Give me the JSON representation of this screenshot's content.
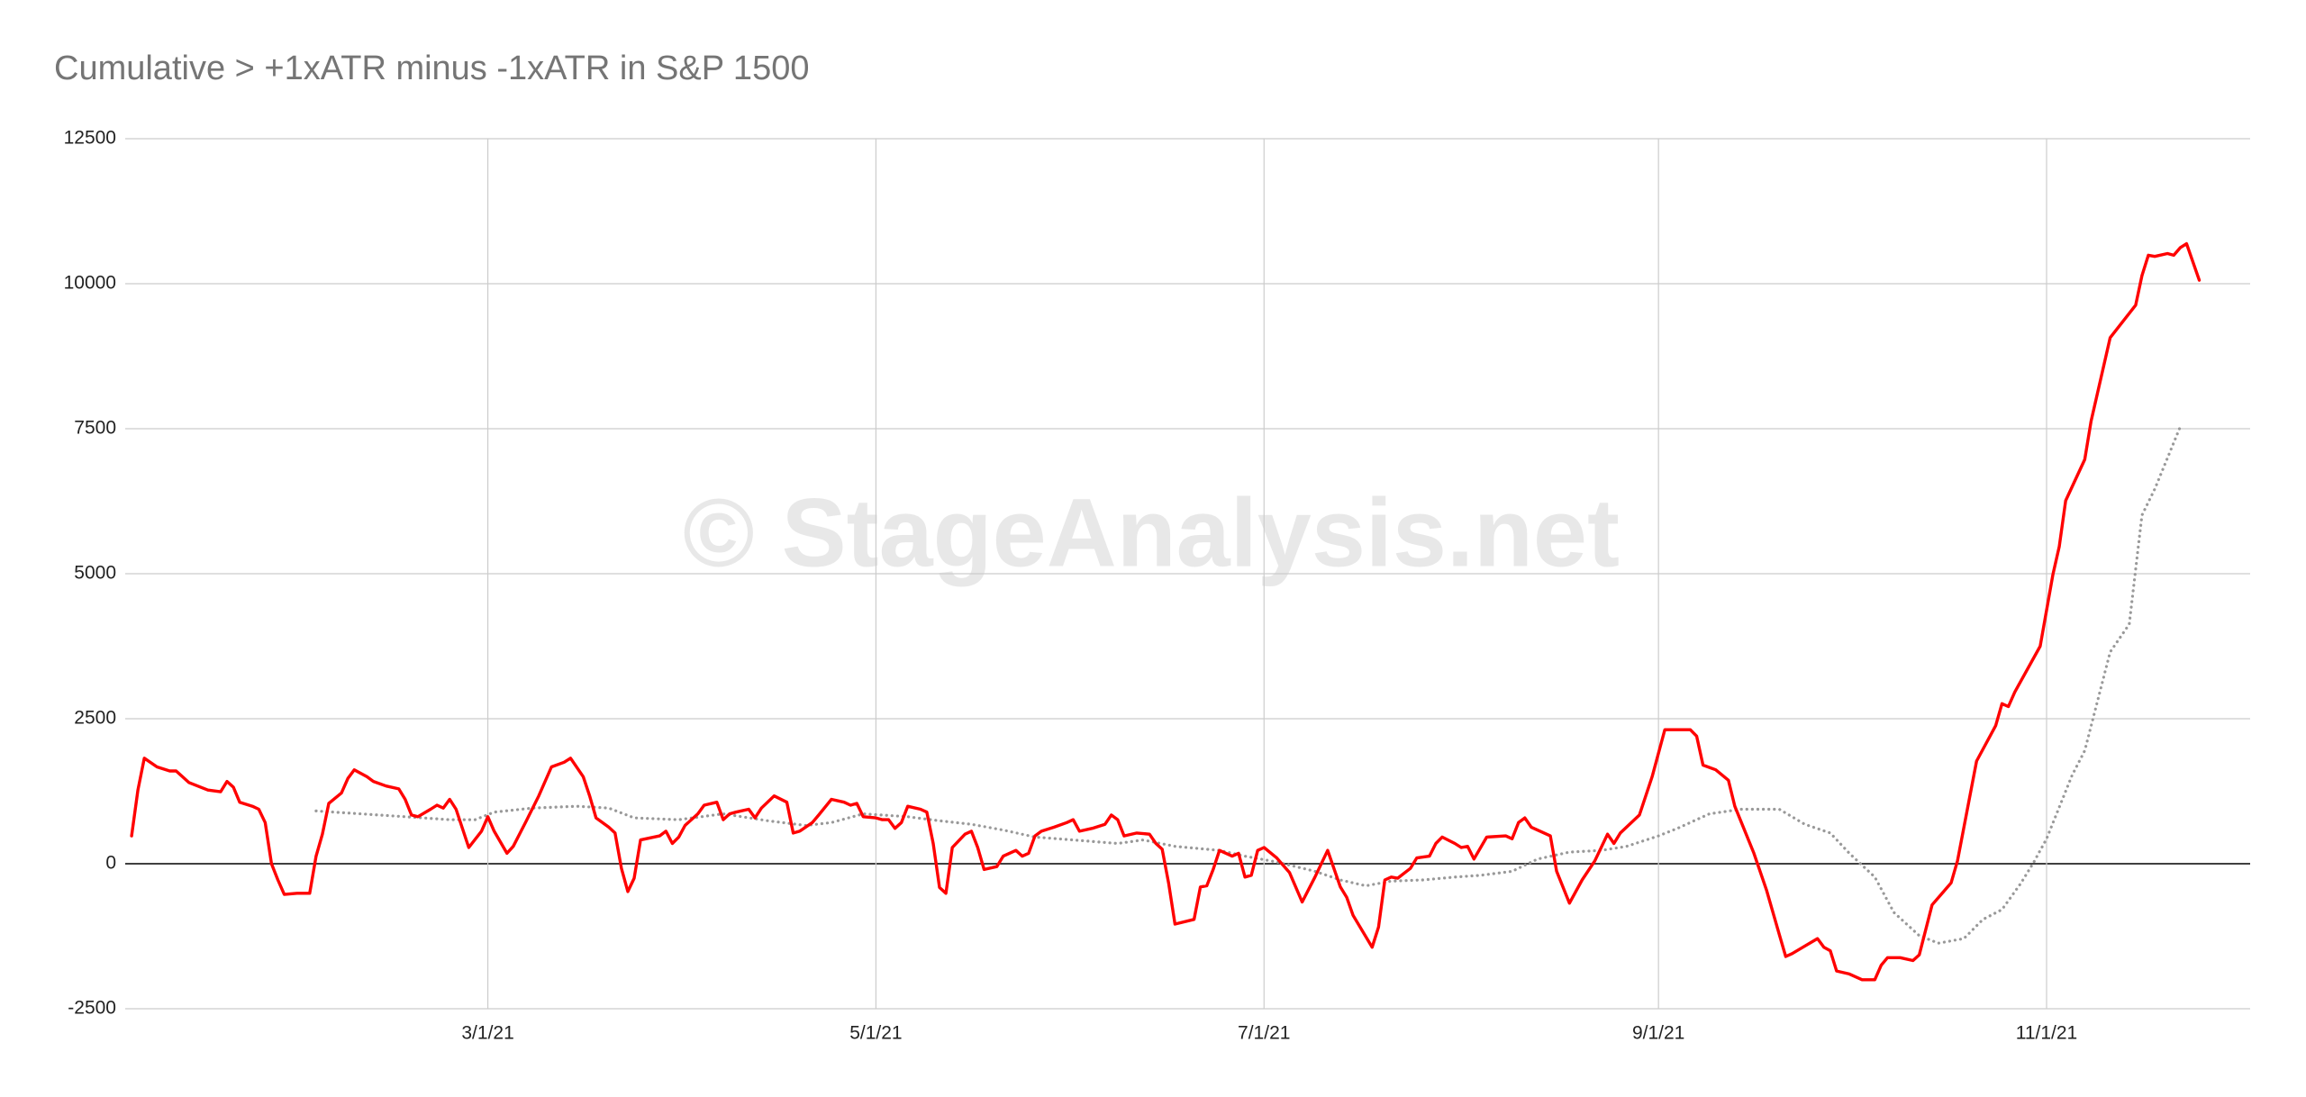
{
  "chart_data": {
    "type": "line",
    "title": "Cumulative > +1xATR minus -1xATR in S&P 1500",
    "watermark": "© StageAnalysis.net",
    "xlim": [
      "1/3/21",
      "12/3/21"
    ],
    "xticks": [
      "3/1/21",
      "5/1/21",
      "7/1/21",
      "9/1/21",
      "11/1/21"
    ],
    "ylim": [
      -2500,
      12500
    ],
    "yticks": [
      -2500,
      0,
      2500,
      5000,
      7500,
      10000,
      12500
    ],
    "grid": true,
    "series": [
      {
        "color": "#ff0000",
        "style": "solid",
        "x": [
          "1/4/21",
          "1/5/21",
          "1/6/21",
          "1/8/21",
          "1/10/21",
          "1/11/21",
          "1/12/21",
          "1/13/21",
          "1/16/21",
          "1/18/21",
          "1/19/21",
          "1/20/21",
          "1/21/21",
          "1/23/21",
          "1/24/21",
          "1/25/21",
          "1/26/21",
          "1/27/21",
          "1/28/21",
          "1/30/21",
          "2/1/21",
          "2/2/21",
          "2/3/21",
          "2/4/21",
          "2/6/21",
          "2/7/21",
          "2/8/21",
          "2/10/21",
          "2/11/21",
          "2/13/21",
          "2/15/21",
          "2/16/21",
          "2/17/21",
          "2/18/21",
          "2/20/21",
          "2/21/21",
          "2/22/21",
          "2/23/21",
          "2/24/21",
          "2/26/21",
          "2/28/21",
          "3/1/21",
          "3/2/21",
          "3/4/21",
          "3/5/21",
          "3/7/21",
          "3/9/21",
          "3/11/21",
          "3/13/21",
          "3/14/21",
          "3/16/21",
          "3/17/21",
          "3/18/21",
          "3/20/21",
          "3/21/21",
          "3/22/21",
          "3/23/21",
          "3/24/21",
          "3/25/21",
          "3/28/21",
          "3/29/21",
          "3/30/21",
          "3/31/21",
          "4/1/21",
          "4/3/21",
          "4/4/21",
          "4/6/21",
          "4/7/21",
          "4/8/21",
          "4/9/21",
          "4/11/21",
          "4/12/21",
          "4/13/21",
          "4/15/21",
          "4/17/21",
          "4/18/21",
          "4/19/21",
          "4/21/21",
          "4/22/21",
          "4/24/21",
          "4/26/21",
          "4/27/21",
          "4/28/21",
          "4/29/21",
          "5/1/21",
          "5/2/21",
          "5/3/21",
          "5/4/21",
          "5/5/21",
          "5/6/21",
          "5/8/21",
          "5/9/21",
          "5/10/21",
          "5/11/21",
          "5/12/21",
          "5/13/21",
          "5/15/21",
          "5/16/21",
          "5/17/21",
          "5/18/21",
          "5/20/21",
          "5/21/21",
          "5/23/21",
          "5/24/21",
          "5/25/21",
          "5/26/21",
          "5/27/21",
          "5/29/21",
          "5/31/21",
          "6/1/21",
          "6/2/21",
          "6/4/21",
          "6/6/21",
          "6/7/21",
          "6/8/21",
          "6/9/21",
          "6/11/21",
          "6/13/21",
          "6/14/21",
          "6/15/21",
          "6/16/21",
          "6/17/21",
          "6/20/21",
          "6/21/21",
          "6/22/21",
          "6/23/21",
          "6/24/21",
          "6/26/21",
          "6/27/21",
          "6/28/21",
          "6/29/21",
          "6/30/21",
          "7/1/21",
          "7/3/21",
          "7/5/21",
          "7/7/21",
          "7/9/21",
          "7/11/21",
          "7/13/21",
          "7/14/21",
          "7/15/21",
          "7/18/21",
          "7/19/21",
          "7/20/21",
          "7/21/21",
          "7/22/21",
          "7/24/21",
          "7/25/21",
          "7/27/21",
          "7/28/21",
          "7/29/21",
          "7/31/21",
          "8/1/21",
          "8/2/21",
          "8/3/21",
          "8/5/21",
          "8/8/21",
          "8/9/21",
          "8/10/21",
          "8/11/21",
          "8/12/21",
          "8/15/21",
          "8/16/21",
          "8/18/21",
          "8/20/21",
          "8/22/21",
          "8/24/21",
          "8/25/21",
          "8/26/21",
          "8/29/21",
          "8/31/21",
          "9/2/21",
          "9/6/21",
          "9/7/21",
          "9/8/21",
          "9/10/21",
          "9/12/21",
          "9/13/21",
          "9/16/21",
          "9/18/21",
          "9/20/21",
          "9/21/21",
          "9/22/21",
          "9/24/21",
          "9/26/21",
          "9/27/21",
          "9/28/21",
          "9/29/21",
          "10/1/21",
          "10/3/21",
          "10/5/21",
          "10/6/21",
          "10/7/21",
          "10/9/21",
          "10/11/21",
          "10/12/21",
          "10/14/21",
          "10/17/21",
          "10/18/21",
          "10/21/21",
          "10/24/21",
          "10/25/21",
          "10/26/21",
          "10/27/21",
          "10/31/21",
          "11/2/21",
          "11/3/21",
          "11/4/21",
          "11/7/21",
          "11/8/21",
          "11/11/21",
          "11/15/21",
          "11/16/21",
          "11/17/21",
          "11/18/21",
          "11/20/21",
          "11/21/21",
          "11/22/21",
          "11/23/21",
          "11/25/21"
        ],
        "values": [
          480,
          1270,
          1820,
          1670,
          1600,
          1600,
          1500,
          1400,
          1270,
          1240,
          1420,
          1320,
          1060,
          990,
          940,
          710,
          0,
          -280,
          -530,
          -510,
          -510,
          130,
          510,
          1040,
          1220,
          1470,
          1620,
          1500,
          1420,
          1340,
          1290,
          1110,
          840,
          810,
          940,
          1010,
          960,
          1110,
          940,
          280,
          560,
          810,
          560,
          180,
          300,
          730,
          1170,
          1670,
          1750,
          1820,
          1500,
          1170,
          790,
          630,
          530,
          -80,
          -480,
          -250,
          410,
          480,
          560,
          350,
          460,
          660,
          860,
          1010,
          1060,
          760,
          860,
          890,
          940,
          790,
          960,
          1170,
          1060,
          530,
          560,
          710,
          840,
          1110,
          1060,
          1010,
          1040,
          810,
          790,
          760,
          760,
          610,
          710,
          990,
          940,
          890,
          350,
          -410,
          -510,
          280,
          510,
          560,
          280,
          -100,
          -50,
          130,
          230,
          130,
          180,
          480,
          560,
          630,
          710,
          760,
          560,
          610,
          680,
          840,
          760,
          480,
          530,
          510,
          350,
          250,
          -330,
          -1040,
          -960,
          -400,
          -380,
          -100,
          230,
          130,
          180,
          -230,
          -200,
          230,
          280,
          100,
          -150,
          -660,
          -230,
          230,
          -400,
          -580,
          -890,
          -1440,
          -1090,
          -280,
          -230,
          -250,
          -80,
          100,
          130,
          350,
          460,
          350,
          280,
          300,
          80,
          460,
          480,
          430,
          710,
          790,
          630,
          480,
          -130,
          -680,
          -280,
          50,
          510,
          350,
          530,
          840,
          1500,
          2310,
          2310,
          2200,
          1700,
          1620,
          1440,
          990,
          180,
          -460,
          -1220,
          -1600,
          -1550,
          -1420,
          -1290,
          -1440,
          -1500,
          -1850,
          -1900,
          -2000,
          -2000,
          -1750,
          -1620,
          -1620,
          -1670,
          -1570,
          -710,
          -330,
          50,
          1770,
          2380,
          2760,
          2710,
          2960,
          3750,
          4990,
          5470,
          6260,
          6970,
          7630,
          9070,
          9630,
          10140,
          10490,
          10470,
          10520,
          10490,
          10620,
          10690,
          10060
        ]
      },
      {
        "color": "#999999",
        "style": "dotted",
        "x": [
          "2/2/21",
          "2/9/21",
          "2/16/21",
          "2/23/21",
          "2/27/21",
          "3/2/21",
          "3/8/21",
          "3/15/21",
          "3/20/21",
          "3/24/21",
          "3/31/21",
          "4/7/21",
          "4/14/21",
          "4/20/21",
          "4/24/21",
          "4/29/21",
          "5/6/21",
          "5/11/21",
          "5/16/21",
          "5/21/21",
          "5/26/21",
          "6/1/21",
          "6/8/21",
          "6/12/21",
          "6/17/21",
          "6/24/21",
          "6/28/21",
          "7/3/21",
          "7/9/21",
          "7/13/21",
          "7/17/21",
          "7/21/21",
          "7/26/21",
          "7/31/21",
          "8/4/21",
          "8/9/21",
          "8/13/21",
          "8/18/21",
          "8/23/21",
          "8/27/21",
          "9/1/21",
          "9/4/21",
          "9/9/21",
          "9/14/21",
          "9/20/21",
          "9/24/21",
          "9/28/21",
          "10/1/21",
          "10/5/21",
          "10/8/21",
          "10/12/21",
          "10/15/21",
          "10/19/21",
          "10/22/21",
          "10/25/21",
          "10/28/21",
          "10/30/21",
          "11/1/21",
          "11/5/21",
          "11/7/21",
          "11/11/21",
          "11/14/21",
          "11/16/21",
          "11/18/21",
          "11/22/21"
        ],
        "values": [
          910,
          860,
          810,
          760,
          760,
          890,
          960,
          990,
          960,
          790,
          760,
          860,
          740,
          660,
          710,
          860,
          810,
          740,
          680,
          580,
          460,
          410,
          350,
          410,
          300,
          230,
          130,
          30,
          -130,
          -280,
          -380,
          -300,
          -280,
          -230,
          -200,
          -130,
          80,
          200,
          230,
          300,
          480,
          610,
          860,
          940,
          940,
          680,
          530,
          180,
          -230,
          -840,
          -1240,
          -1370,
          -1290,
          -960,
          -790,
          -330,
          30,
          430,
          1520,
          1950,
          3650,
          4130,
          6010,
          6460,
          7530
        ]
      }
    ]
  }
}
